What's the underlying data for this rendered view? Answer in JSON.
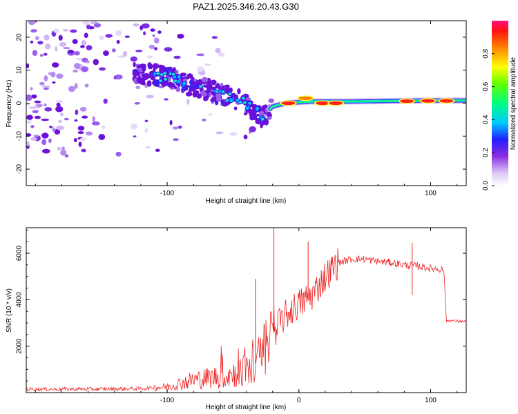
{
  "title": "PAZ1.2025.346.20.43.G30",
  "chart_data": [
    {
      "type": "heatmap",
      "panel": "top",
      "xlabel": "Height of straight line (km)",
      "ylabel": "Frequency (Hz)",
      "xlim": [
        -207,
        127
      ],
      "ylim": [
        -25,
        25
      ],
      "x_ticks": [
        -100,
        100
      ],
      "x_tick_labels": [
        "-100",
        "100"
      ],
      "y_ticks": [
        -20,
        -10,
        0,
        10,
        20
      ],
      "y_tick_labels": [
        "-20",
        "-10",
        "0",
        "10",
        "20"
      ],
      "description_of_values": "normalized spectral amplitude vs height and frequency",
      "tone_track": {
        "x": [
          -120,
          -100,
          -80,
          -60,
          -45,
          -35,
          -28,
          -20,
          -10,
          0,
          10,
          40,
          80,
          100,
          127
        ],
        "freq": [
          9,
          8,
          5,
          3,
          1,
          -2,
          -4,
          -1,
          0,
          0.3,
          0.5,
          0.5,
          0.7,
          0.8,
          0.8
        ]
      },
      "hotspots": [
        {
          "x": -8,
          "freq": 0,
          "amp": 1.0
        },
        {
          "x": 18,
          "freq": 0,
          "amp": 1.0
        },
        {
          "x": 28,
          "freq": 0,
          "amp": 0.95
        },
        {
          "x": 82,
          "freq": 0.6,
          "amp": 0.95
        },
        {
          "x": 98,
          "freq": 0.7,
          "amp": 1.0
        },
        {
          "x": 112,
          "freq": 0.7,
          "amp": 1.0
        },
        {
          "x": 5,
          "freq": 1.5,
          "amp": 0.6
        }
      ],
      "colorbar": {
        "label": "Normalized spectral amplitude",
        "ticks": [
          0.0,
          0.2,
          0.4,
          0.6,
          0.8
        ],
        "tick_labels": [
          "0.0",
          "0.2",
          "0.4",
          "0.6",
          "0.8"
        ],
        "range": [
          0,
          1
        ]
      }
    },
    {
      "type": "line",
      "panel": "bottom",
      "xlabel": "Height of straight line (km)",
      "ylabel": "SNR (10 * v/v)",
      "xlim": [
        -207,
        127
      ],
      "ylim": [
        0,
        7100
      ],
      "x_ticks": [
        -100,
        0,
        100
      ],
      "x_tick_labels": [
        "-100",
        "0",
        "100"
      ],
      "y_ticks": [
        2000,
        4000,
        6000
      ],
      "y_tick_labels": [
        "2000",
        "4000",
        "6000"
      ],
      "color": "#ee2222",
      "series": [
        {
          "name": "SNR",
          "x": [
            -207,
            -160,
            -120,
            -100,
            -80,
            -60,
            -45,
            -35,
            -28,
            -22,
            -18,
            -12,
            -5,
            0,
            5,
            10,
            20,
            30,
            40,
            50,
            60,
            70,
            80,
            90,
            100,
            110,
            112,
            115,
            127
          ],
          "y": [
            150,
            150,
            170,
            250,
            550,
            700,
            850,
            1100,
            1600,
            2200,
            2700,
            3200,
            3600,
            3800,
            4000,
            4200,
            5000,
            5600,
            5750,
            5750,
            5650,
            5600,
            5500,
            5450,
            5350,
            5300,
            3100,
            3100,
            3050
          ]
        }
      ],
      "spikes": [
        {
          "x": -19,
          "y": 7100
        },
        {
          "x": 7,
          "y": 6500
        },
        {
          "x": 86,
          "y": 6450
        },
        {
          "x": -33,
          "y": 4900
        },
        {
          "x": 86,
          "y": 4200
        }
      ]
    }
  ]
}
